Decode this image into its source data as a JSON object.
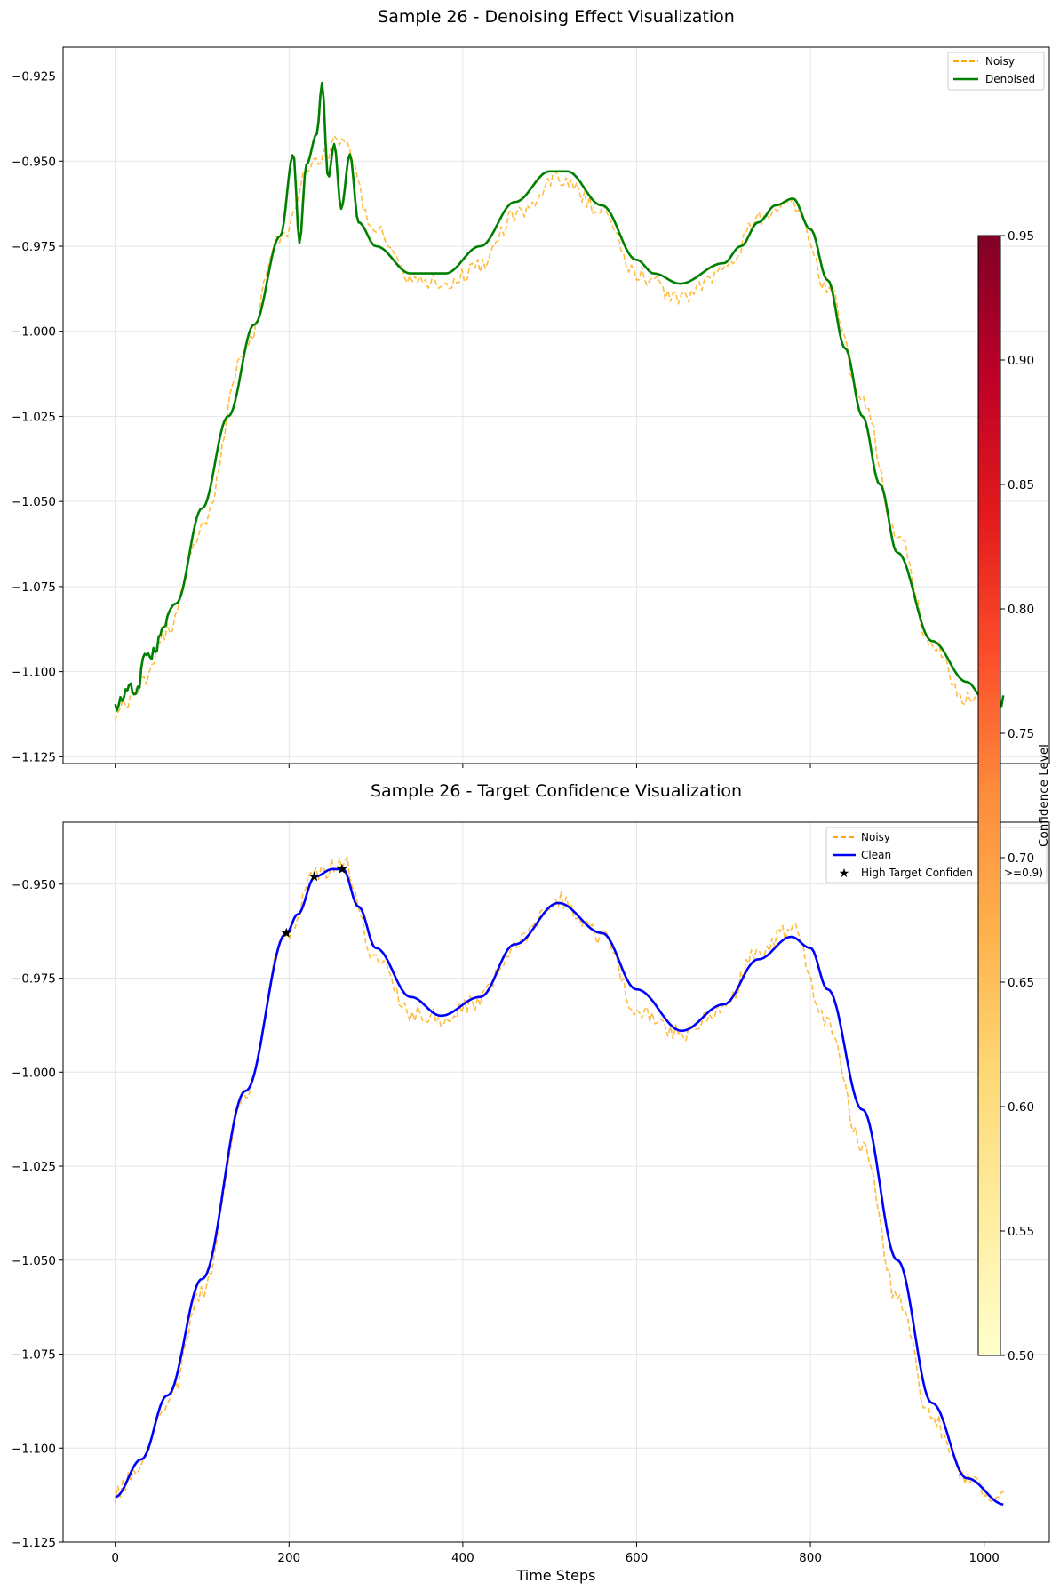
{
  "chart_data": [
    {
      "type": "line",
      "title": "Sample 26 - Denoising Effect Visualization",
      "xlabel": "",
      "ylabel": "",
      "xlim": [
        -60,
        1075
      ],
      "ylim": [
        -1.127,
        -0.9165
      ],
      "x_ticks": [
        0,
        200,
        400,
        600,
        800,
        1000
      ],
      "x_tick_labels_visible": false,
      "y_ticks": [
        -1.125,
        -1.1,
        -1.075,
        -1.05,
        -1.025,
        -1.0,
        -0.975,
        -0.95,
        -0.925
      ],
      "y_tick_labels": [
        "−1.125",
        "−1.100",
        "−1.075",
        "−1.050",
        "−1.025",
        "−1.000",
        "−0.975",
        "−0.950",
        "−0.925"
      ],
      "grid": true,
      "legend_position": "top-right",
      "series": [
        {
          "name": "Noisy",
          "color": "#ffa500",
          "style": "dashed",
          "x": [
            0,
            30,
            60,
            100,
            150,
            190,
            230,
            260,
            300,
            340,
            380,
            420,
            460,
            510,
            560,
            600,
            650,
            700,
            740,
            780,
            820,
            860,
            900,
            940,
            980,
            1023
          ],
          "y": [
            -1.112,
            -1.104,
            -1.088,
            -1.058,
            -1.005,
            -0.972,
            -0.95,
            -0.944,
            -0.97,
            -0.984,
            -0.986,
            -0.981,
            -0.966,
            -0.955,
            -0.964,
            -0.983,
            -0.99,
            -0.983,
            -0.967,
            -0.963,
            -0.987,
            -1.02,
            -1.06,
            -1.092,
            -1.108,
            -1.109
          ]
        },
        {
          "name": "Denoised",
          "color": "#008000",
          "style": "solid",
          "x": [
            0,
            20,
            40,
            70,
            100,
            130,
            160,
            190,
            205,
            212,
            220,
            232,
            238,
            245,
            252,
            260,
            270,
            280,
            300,
            340,
            380,
            420,
            460,
            500,
            520,
            560,
            600,
            620,
            650,
            700,
            720,
            740,
            760,
            780,
            800,
            820,
            840,
            860,
            880,
            900,
            940,
            980,
            1000,
            1023
          ],
          "y": [
            -1.109,
            -1.106,
            -1.095,
            -1.08,
            -1.052,
            -1.025,
            -0.998,
            -0.972,
            -0.948,
            -0.974,
            -0.951,
            -0.942,
            -0.927,
            -0.955,
            -0.945,
            -0.964,
            -0.948,
            -0.968,
            -0.975,
            -0.983,
            -0.983,
            -0.975,
            -0.962,
            -0.953,
            -0.953,
            -0.963,
            -0.979,
            -0.983,
            -0.986,
            -0.98,
            -0.975,
            -0.968,
            -0.963,
            -0.961,
            -0.97,
            -0.985,
            -1.005,
            -1.025,
            -1.045,
            -1.065,
            -1.091,
            -1.103,
            -1.108,
            -1.108
          ]
        }
      ]
    },
    {
      "type": "line",
      "title": "Sample 26 - Target Confidence Visualization",
      "xlabel": "Time Steps",
      "ylabel": "",
      "xlim": [
        -60,
        1075
      ],
      "ylim": [
        -1.125,
        -0.9335
      ],
      "x_ticks": [
        0,
        200,
        400,
        600,
        800,
        1000
      ],
      "x_tick_labels": [
        "0",
        "200",
        "400",
        "600",
        "800",
        "1000"
      ],
      "y_ticks": [
        -1.125,
        -1.1,
        -1.075,
        -1.05,
        -1.025,
        -1.0,
        -0.975,
        -0.95
      ],
      "y_tick_labels": [
        "−1.125",
        "−1.100",
        "−1.075",
        "−1.050",
        "−1.025",
        "−1.000",
        "−0.975",
        "−0.950"
      ],
      "grid": true,
      "legend_position": "top-right",
      "series": [
        {
          "name": "Noisy",
          "color": "#ffa500",
          "style": "dashed",
          "x": [
            0,
            30,
            60,
            100,
            150,
            197,
            230,
            262,
            300,
            340,
            375,
            420,
            460,
            510,
            560,
            600,
            652,
            700,
            740,
            778,
            820,
            860,
            900,
            940,
            980,
            1023
          ],
          "y": [
            -1.112,
            -1.104,
            -1.088,
            -1.058,
            -1.005,
            -0.963,
            -0.948,
            -0.944,
            -0.97,
            -0.984,
            -0.986,
            -0.981,
            -0.966,
            -0.954,
            -0.964,
            -0.983,
            -0.99,
            -0.983,
            -0.967,
            -0.962,
            -0.987,
            -1.02,
            -1.06,
            -1.092,
            -1.109,
            -1.114
          ]
        },
        {
          "name": "Clean",
          "color": "#0000ff",
          "style": "solid",
          "x": [
            0,
            30,
            60,
            100,
            150,
            197,
            210,
            230,
            250,
            262,
            280,
            300,
            340,
            375,
            420,
            460,
            510,
            560,
            600,
            652,
            700,
            740,
            778,
            800,
            820,
            860,
            900,
            940,
            980,
            1023
          ],
          "y": [
            -1.113,
            -1.103,
            -1.086,
            -1.055,
            -1.005,
            -0.963,
            -0.958,
            -0.948,
            -0.946,
            -0.946,
            -0.956,
            -0.967,
            -0.98,
            -0.985,
            -0.98,
            -0.966,
            -0.955,
            -0.963,
            -0.978,
            -0.989,
            -0.982,
            -0.97,
            -0.964,
            -0.967,
            -0.978,
            -1.01,
            -1.05,
            -1.088,
            -1.108,
            -1.115
          ]
        },
        {
          "name": "High Target Confidence (>=0.9)",
          "legend_visible_text": "High Target Confiden",
          "legend_tail_text": ">=0.9)",
          "color": "#000000",
          "marker": "star",
          "x": [
            197,
            229,
            261
          ],
          "y": [
            -0.963,
            -0.948,
            -0.946
          ]
        }
      ]
    }
  ],
  "colorbar": {
    "label": "Confidence Level",
    "colormap": "YlOrRd",
    "range": [
      0.5,
      0.95
    ],
    "ticks": [
      0.5,
      0.55,
      0.6,
      0.65,
      0.7,
      0.75,
      0.8,
      0.85,
      0.9,
      0.95
    ],
    "tick_labels": [
      "0.50",
      "0.55",
      "0.60",
      "0.65",
      "0.70",
      "0.75",
      "0.80",
      "0.85",
      "0.90",
      "0.95"
    ],
    "stops": [
      "#ffffcc",
      "#ffeda0",
      "#fed976",
      "#feb24c",
      "#fd8d3c",
      "#fc4e2a",
      "#e31a1c",
      "#bd0026",
      "#800026"
    ]
  },
  "colors": {
    "grid": "#e6e6e6",
    "axes": "#000000"
  }
}
